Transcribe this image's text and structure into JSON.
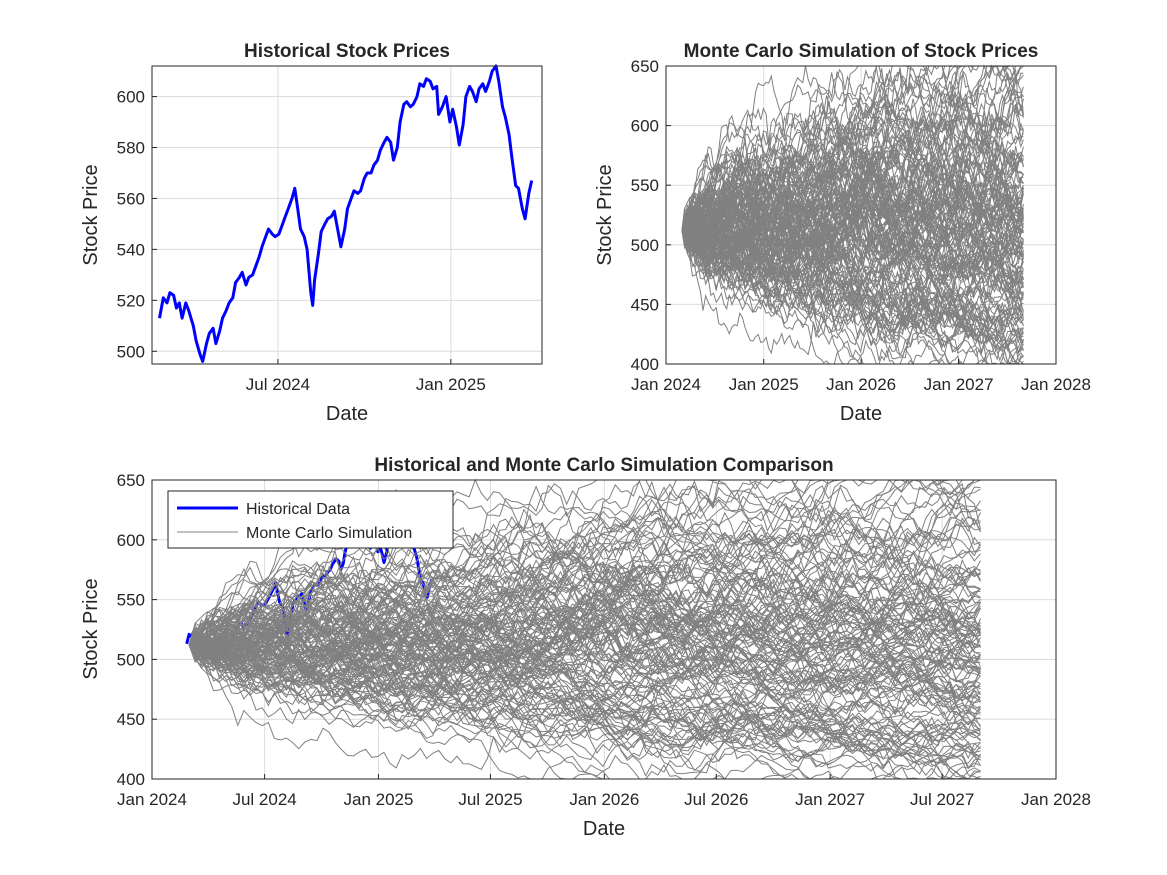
{
  "colors": {
    "historical": "#0000ff",
    "simulation": "#808080",
    "grid": "#dcdcdc",
    "axis": "#262626"
  },
  "chart_data": [
    {
      "id": "historical",
      "type": "line",
      "title": "Historical Stock Prices",
      "xlabel": "Date",
      "ylabel": "Stock Price",
      "xlim": [
        "2024-02-18",
        "2025-04-08"
      ],
      "ylim": [
        495,
        612
      ],
      "xticks": [
        {
          "x": "2024-07-01",
          "label": "Jul 2024"
        },
        {
          "x": "2025-01-01",
          "label": "Jan 2025"
        }
      ],
      "yticks": [
        500,
        520,
        540,
        560,
        580,
        600
      ],
      "grid": true,
      "series": [
        {
          "color": "#0000ff",
          "points": [
            [
              "2024-02-26",
              513
            ],
            [
              "2024-03-01",
              521
            ],
            [
              "2024-03-05",
              519
            ],
            [
              "2024-03-08",
              523
            ],
            [
              "2024-03-12",
              522
            ],
            [
              "2024-03-15",
              517
            ],
            [
              "2024-03-18",
              519
            ],
            [
              "2024-03-21",
              513
            ],
            [
              "2024-03-25",
              519
            ],
            [
              "2024-03-28",
              516
            ],
            [
              "2024-04-02",
              510
            ],
            [
              "2024-04-05",
              504
            ],
            [
              "2024-04-09",
              499
            ],
            [
              "2024-04-12",
              496
            ],
            [
              "2024-04-16",
              503
            ],
            [
              "2024-04-19",
              507
            ],
            [
              "2024-04-23",
              509
            ],
            [
              "2024-04-26",
              503
            ],
            [
              "2024-04-30",
              508
            ],
            [
              "2024-05-03",
              513
            ],
            [
              "2024-05-07",
              516
            ],
            [
              "2024-05-10",
              519
            ],
            [
              "2024-05-14",
              521
            ],
            [
              "2024-05-17",
              527
            ],
            [
              "2024-05-21",
              529
            ],
            [
              "2024-05-24",
              531
            ],
            [
              "2024-05-28",
              526
            ],
            [
              "2024-05-31",
              529
            ],
            [
              "2024-06-04",
              530
            ],
            [
              "2024-06-07",
              533
            ],
            [
              "2024-06-11",
              537
            ],
            [
              "2024-06-14",
              541
            ],
            [
              "2024-06-18",
              545
            ],
            [
              "2024-06-21",
              548
            ],
            [
              "2024-06-25",
              546
            ],
            [
              "2024-06-28",
              545
            ],
            [
              "2024-07-02",
              546
            ],
            [
              "2024-07-05",
              549
            ],
            [
              "2024-07-09",
              553
            ],
            [
              "2024-07-12",
              556
            ],
            [
              "2024-07-16",
              560
            ],
            [
              "2024-07-19",
              564
            ],
            [
              "2024-07-22",
              556
            ],
            [
              "2024-07-25",
              548
            ],
            [
              "2024-07-29",
              545
            ],
            [
              "2024-08-01",
              540
            ],
            [
              "2024-08-05",
              523
            ],
            [
              "2024-08-07",
              518
            ],
            [
              "2024-08-09",
              528
            ],
            [
              "2024-08-13",
              538
            ],
            [
              "2024-08-16",
              547
            ],
            [
              "2024-08-20",
              550
            ],
            [
              "2024-08-23",
              552
            ],
            [
              "2024-08-27",
              553
            ],
            [
              "2024-08-30",
              555
            ],
            [
              "2024-09-03",
              547
            ],
            [
              "2024-09-06",
              541
            ],
            [
              "2024-09-10",
              548
            ],
            [
              "2024-09-13",
              556
            ],
            [
              "2024-09-17",
              560
            ],
            [
              "2024-09-20",
              563
            ],
            [
              "2024-09-24",
              562
            ],
            [
              "2024-09-27",
              563
            ],
            [
              "2024-10-01",
              568
            ],
            [
              "2024-10-04",
              570
            ],
            [
              "2024-10-08",
              570
            ],
            [
              "2024-10-11",
              573
            ],
            [
              "2024-10-15",
              575
            ],
            [
              "2024-10-18",
              579
            ],
            [
              "2024-10-22",
              582
            ],
            [
              "2024-10-25",
              584
            ],
            [
              "2024-10-29",
              582
            ],
            [
              "2024-11-01",
              575
            ],
            [
              "2024-11-05",
              580
            ],
            [
              "2024-11-08",
              590
            ],
            [
              "2024-11-12",
              597
            ],
            [
              "2024-11-15",
              598
            ],
            [
              "2024-11-19",
              596
            ],
            [
              "2024-11-22",
              597
            ],
            [
              "2024-11-26",
              600
            ],
            [
              "2024-11-29",
              605
            ],
            [
              "2024-12-03",
              604
            ],
            [
              "2024-12-06",
              607
            ],
            [
              "2024-12-10",
              606
            ],
            [
              "2024-12-13",
              603
            ],
            [
              "2024-12-17",
              604
            ],
            [
              "2024-12-19",
              593
            ],
            [
              "2024-12-23",
              596
            ],
            [
              "2024-12-27",
              600
            ],
            [
              "2024-12-31",
              590
            ],
            [
              "2025-01-03",
              595
            ],
            [
              "2025-01-07",
              588
            ],
            [
              "2025-01-10",
              581
            ],
            [
              "2025-01-14",
              589
            ],
            [
              "2025-01-17",
              600
            ],
            [
              "2025-01-21",
              604
            ],
            [
              "2025-01-24",
              602
            ],
            [
              "2025-01-28",
              598
            ],
            [
              "2025-01-31",
              603
            ],
            [
              "2025-02-04",
              605
            ],
            [
              "2025-02-07",
              602
            ],
            [
              "2025-02-11",
              606
            ],
            [
              "2025-02-14",
              610
            ],
            [
              "2025-02-18",
              612
            ],
            [
              "2025-02-21",
              606
            ],
            [
              "2025-02-25",
              596
            ],
            [
              "2025-02-28",
              592
            ],
            [
              "2025-03-04",
              585
            ],
            [
              "2025-03-07",
              576
            ],
            [
              "2025-03-11",
              565
            ],
            [
              "2025-03-14",
              564
            ],
            [
              "2025-03-18",
              556
            ],
            [
              "2025-03-21",
              552
            ],
            [
              "2025-03-25",
              562
            ],
            [
              "2025-03-28",
              567
            ]
          ]
        }
      ]
    },
    {
      "id": "montecarlo",
      "type": "line",
      "title": "Monte Carlo Simulation of Stock Prices",
      "xlabel": "Date",
      "ylabel": "Stock Price",
      "xlim": [
        "2024-01-01",
        "2028-01-01"
      ],
      "ylim": [
        400,
        650
      ],
      "xticks": [
        {
          "x": "2024-01-01",
          "label": "Jan 2024"
        },
        {
          "x": "2025-01-01",
          "label": "Jan 2025"
        },
        {
          "x": "2026-01-01",
          "label": "Jan 2026"
        },
        {
          "x": "2027-01-01",
          "label": "Jan 2027"
        },
        {
          "x": "2028-01-01",
          "label": "Jan 2028"
        }
      ],
      "yticks": [
        400,
        450,
        500,
        550,
        600,
        650
      ],
      "grid": true,
      "simulation": {
        "start_date": "2024-03-01",
        "end_date": "2027-09-01",
        "start_price": 512,
        "paths": 150,
        "final_min": 428,
        "final_max": 638,
        "color": "#808080"
      }
    },
    {
      "id": "comparison",
      "type": "line",
      "title": "Historical and Monte Carlo Simulation Comparison",
      "xlabel": "Date",
      "ylabel": "Stock Price",
      "xlim": [
        "2024-01-01",
        "2028-01-01"
      ],
      "ylim": [
        400,
        650
      ],
      "xticks": [
        {
          "x": "2024-01-01",
          "label": "Jan 2024"
        },
        {
          "x": "2024-07-01",
          "label": "Jul 2024"
        },
        {
          "x": "2025-01-01",
          "label": "Jan 2025"
        },
        {
          "x": "2025-07-01",
          "label": "Jul 2025"
        },
        {
          "x": "2026-01-01",
          "label": "Jan 2026"
        },
        {
          "x": "2026-07-01",
          "label": "Jul 2026"
        },
        {
          "x": "2027-01-01",
          "label": "Jan 2027"
        },
        {
          "x": "2027-07-01",
          "label": "Jul 2027"
        },
        {
          "x": "2028-01-01",
          "label": "Jan 2028"
        }
      ],
      "yticks": [
        400,
        450,
        500,
        550,
        600,
        650
      ],
      "grid": true,
      "legend": {
        "placement": "top-left",
        "entries": [
          {
            "label": "Historical Data",
            "color": "#0000ff"
          },
          {
            "label": "Monte Carlo Simulation",
            "color": "#808080"
          }
        ]
      }
    }
  ]
}
